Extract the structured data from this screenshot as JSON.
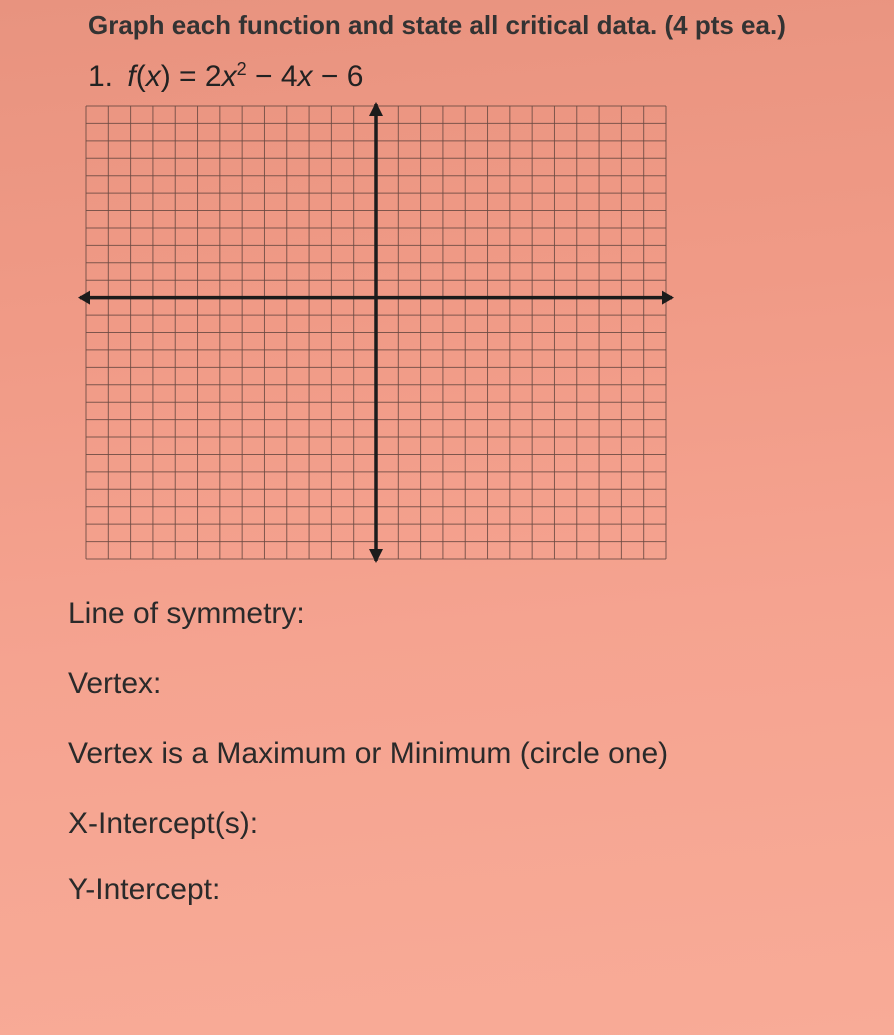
{
  "header": {
    "instructions": "Graph each function and state all critical data. (4 pts ea.)"
  },
  "problem": {
    "number": "1.",
    "function_prefix": "f",
    "function_var": "x",
    "equals": " = ",
    "coef_a": "2",
    "var_sq": "x",
    "exponent": "2",
    "minus1": " − ",
    "coef_b": "4",
    "var_lin": "x",
    "minus2": " − ",
    "constant": "6"
  },
  "grid": {
    "cells": 26,
    "axis_x_at": 11,
    "axis_y_at": 13,
    "line_color": "#6b4a42",
    "axis_color": "#1c1c1c",
    "bg_tint": "#f2a28e"
  },
  "fields": {
    "line_of_symmetry": "Line of symmetry:",
    "vertex": "Vertex:",
    "vertex_type": "Vertex is a Maximum or Minimum (circle one)",
    "x_intercepts": "X-Intercept(s):",
    "y_intercept": "Y-Intercept:"
  }
}
